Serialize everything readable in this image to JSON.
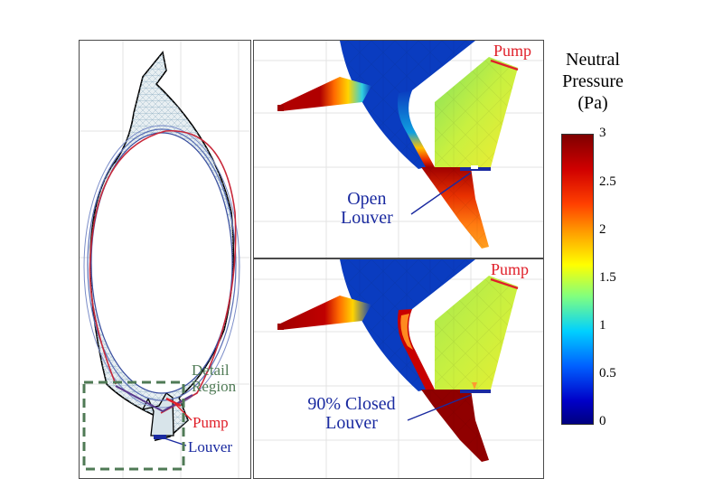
{
  "overview": {
    "detail_region_label_1": "Detail",
    "detail_region_label_2": "Region",
    "pump_label": "Pump",
    "louver_label": "Louver"
  },
  "top_panel": {
    "pump_label": "Pump",
    "louver_label_1": "Open",
    "louver_label_2": "Louver"
  },
  "bottom_panel": {
    "pump_label": "Pump",
    "louver_label_1": "90% Closed",
    "louver_label_2": "Louver"
  },
  "colorbar": {
    "title_1": "Neutral",
    "title_2": "Pressure",
    "title_3": "(Pa)",
    "ticks": [
      "3",
      "2.5",
      "2",
      "1.5",
      "1",
      "0.5",
      "0"
    ]
  },
  "colors": {
    "pump": "#e0202a",
    "louver_text": "#1a2aa0",
    "detail_region": "#4f7a55",
    "max_pressure": "#7f0000",
    "min_pressure": "#00007f"
  }
}
